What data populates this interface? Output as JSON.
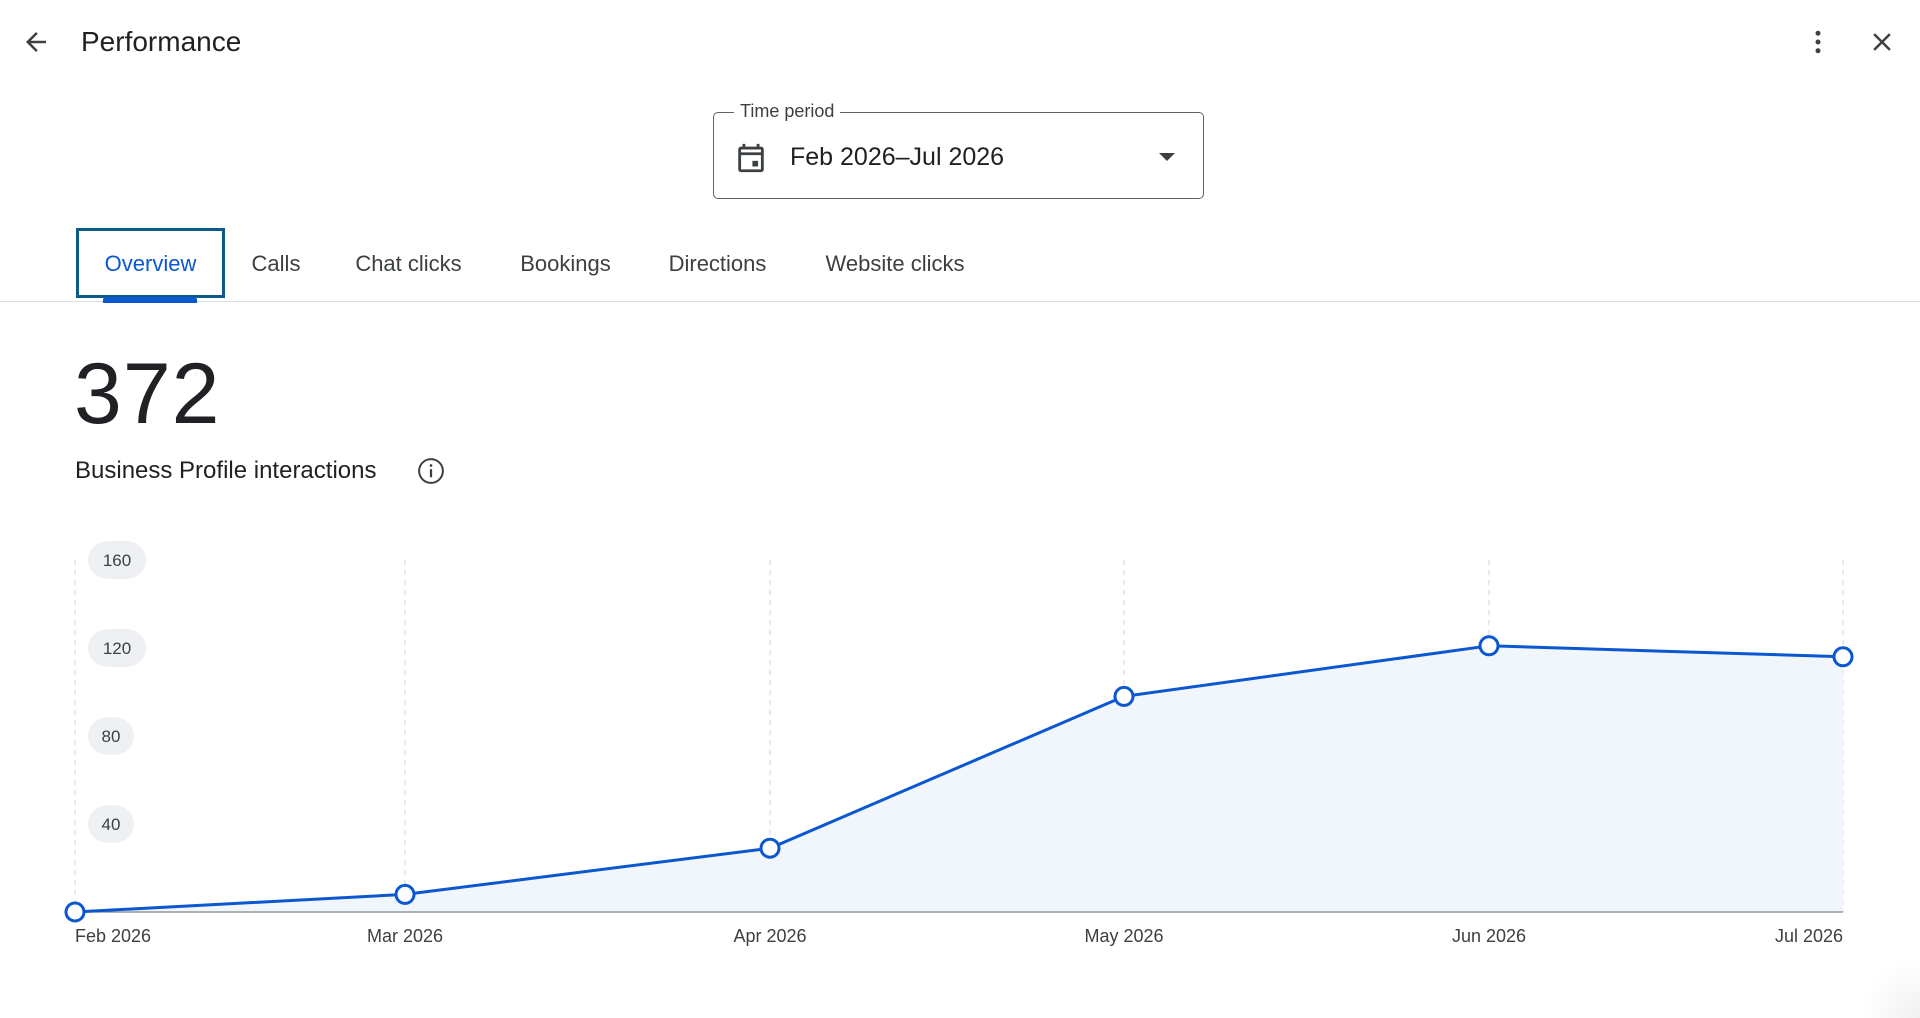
{
  "header": {
    "title": "Performance",
    "back_icon": "arrow-back-icon",
    "more_icon": "more-vert-icon",
    "close_icon": "close-icon"
  },
  "time_period": {
    "label": "Time period",
    "value": "Feb 2026–Jul 2026",
    "icon": "calendar-icon"
  },
  "tabs": [
    {
      "label": "Overview",
      "active": true
    },
    {
      "label": "Calls",
      "active": false
    },
    {
      "label": "Chat clicks",
      "active": false
    },
    {
      "label": "Bookings",
      "active": false
    },
    {
      "label": "Directions",
      "active": false
    },
    {
      "label": "Website clicks",
      "active": false
    }
  ],
  "metric": {
    "value": "372",
    "label": "Business Profile interactions",
    "info_icon": "info-icon"
  },
  "colors": {
    "accent": "#0b57d0",
    "area_fill": "#f1f5fc",
    "focus_outline": "#0b5a8a"
  },
  "chart_data": {
    "type": "area",
    "x": [
      "Feb 2026",
      "Mar 2026",
      "Apr 2026",
      "May 2026",
      "Jun 2026",
      "Jul 2026"
    ],
    "series": [
      {
        "values": [
          0,
          8,
          29,
          98,
          121,
          116
        ]
      }
    ],
    "yticks": [
      40,
      80,
      120,
      160
    ],
    "ylim": [
      0,
      160
    ],
    "grid": "vertical dashed"
  }
}
